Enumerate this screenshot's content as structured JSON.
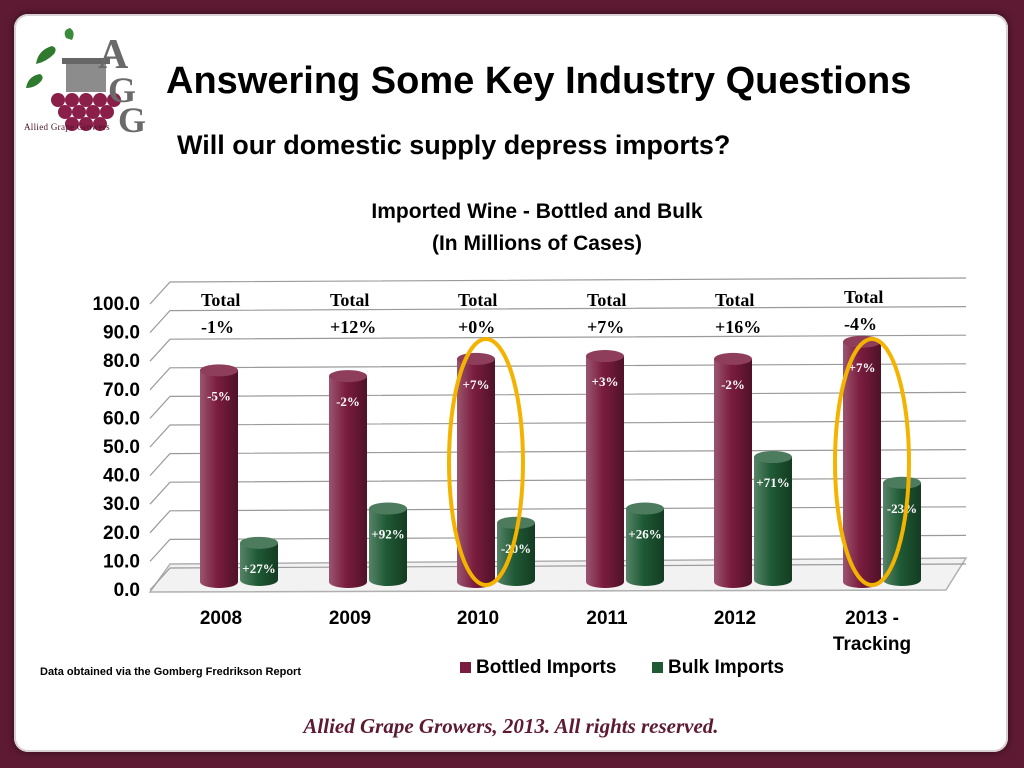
{
  "slide": {
    "title": "Answering Some Key Industry Questions",
    "subtitle": "Will our domestic supply depress imports?",
    "source_note": "Data obtained via the Gomberg Fredrikson Report",
    "footer": "Allied Grape Growers, 2013.  All rights reserved.",
    "logo": {
      "letters": "AGG",
      "name": "Allied Grape Growers"
    }
  },
  "colors": {
    "frame": "#5e1a33",
    "bottled": "#7a1c3e",
    "bulk": "#1f5a35",
    "highlight": "#f3b300"
  },
  "chart_data": {
    "type": "bar",
    "title": [
      "Imported Wine - Bottled and Bulk",
      "(In Millions of Cases)"
    ],
    "categories": [
      [
        "2008"
      ],
      [
        "2009"
      ],
      [
        "2010"
      ],
      [
        "2011"
      ],
      [
        "2012"
      ],
      [
        "2013 -",
        "Tracking"
      ]
    ],
    "ylim": [
      0,
      100
    ],
    "yticks": [
      "0.0",
      "10.0",
      "20.0",
      "30.0",
      "40.0",
      "50.0",
      "60.0",
      "70.0",
      "80.0",
      "90.0",
      "100.0"
    ],
    "legend_position": "bottom",
    "series": [
      {
        "name": "Bottled Imports",
        "values": [
          74,
          72,
          78,
          79,
          78,
          84
        ],
        "labels": [
          "-5%",
          "-2%",
          "+7%",
          "+3%",
          "-2%",
          "+7%"
        ]
      },
      {
        "name": "Bulk Imports",
        "values": [
          13,
          25,
          20,
          25,
          43,
          34
        ],
        "labels": [
          "+27%",
          "+92%",
          "-20%",
          "+26%",
          "+71%",
          "-23%"
        ]
      }
    ],
    "totals": [
      [
        "Total",
        "-1%"
      ],
      [
        "Total",
        "+12%"
      ],
      [
        "Total",
        "+0%"
      ],
      [
        "Total",
        "+7%"
      ],
      [
        "Total",
        "+16%"
      ],
      [
        "Total",
        "-4%"
      ]
    ],
    "highlighted_categories": [
      2,
      5
    ]
  }
}
